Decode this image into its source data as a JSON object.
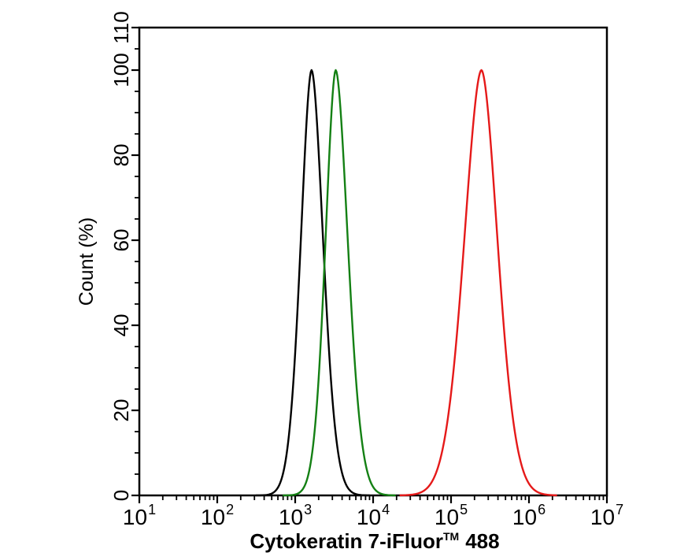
{
  "page": {
    "background": "#ffffff"
  },
  "chart_data": {
    "type": "line",
    "subtype": "flow-cytometry-overlay-histogram",
    "title": "",
    "xlabel": "Cytokeratin 7-iFluor™ 488",
    "xlabel_parts": {
      "prefix": "Cytokeratin 7-iFluor",
      "tm": "TM",
      "suffix": "488"
    },
    "ylabel": "Count (%)",
    "x_scale": "log10",
    "x_log_range": [
      1,
      7
    ],
    "x_tick_mantissa_label": "10",
    "x_major_tick_exponents": [
      1,
      2,
      3,
      4,
      5,
      6,
      7
    ],
    "x_minor_tick_mantissas": [
      2,
      3,
      4,
      5,
      6,
      7,
      8,
      9
    ],
    "ylim": [
      0,
      110
    ],
    "y_major_ticks": [
      0,
      20,
      40,
      60,
      80,
      100,
      110
    ],
    "y_minor_tick_step": 5,
    "grid": false,
    "legend": null,
    "axis_color": "#000000",
    "series": [
      {
        "name": "black-peak",
        "color": "#000000",
        "peak_x": 1620,
        "peak_log10_x": 3.21,
        "peak_y_pct": 100,
        "width_log10_left": 0.2,
        "width_log10_right": 0.215,
        "shape_exponent": 1.8,
        "draw_range_log10": [
          2.5,
          3.95
        ],
        "points": [
          [
            400,
            0
          ],
          [
            500,
            0.5
          ],
          [
            630,
            2.6
          ],
          [
            790,
            11.1
          ],
          [
            1000,
            33.6
          ],
          [
            1260,
            71.1
          ],
          [
            1620,
            100
          ],
          [
            2000,
            81.2
          ],
          [
            2510,
            44.9
          ],
          [
            3160,
            18.0
          ],
          [
            3980,
            5.4
          ],
          [
            5010,
            1.2
          ],
          [
            6310,
            0.2
          ],
          [
            7940,
            0
          ]
        ]
      },
      {
        "name": "green-peak",
        "color": "#148014",
        "peak_x": 3310,
        "peak_log10_x": 3.52,
        "peak_y_pct": 100,
        "width_log10_left": 0.19,
        "width_log10_right": 0.225,
        "shape_exponent": 1.8,
        "draw_range_log10": [
          2.85,
          4.28
        ],
        "points": [
          [
            1000,
            0.2
          ],
          [
            1260,
            1.5
          ],
          [
            1590,
            7.8
          ],
          [
            2000,
            27.2
          ],
          [
            2510,
            64.6
          ],
          [
            3310,
            100
          ],
          [
            3980,
            85.6
          ],
          [
            5010,
            51.2
          ],
          [
            6310,
            22.7
          ],
          [
            7940,
            7.7
          ],
          [
            10000,
            2.0
          ],
          [
            12600,
            0.4
          ],
          [
            15900,
            0
          ]
        ]
      },
      {
        "name": "red-peak",
        "color": "#e51919",
        "peak_x": 245000,
        "peak_log10_x": 5.39,
        "peak_y_pct": 100,
        "width_log10_left": 0.32,
        "width_log10_right": 0.3,
        "shape_exponent": 1.8,
        "draw_range_log10": [
          4.35,
          6.35
        ],
        "points": [
          [
            31600,
            0.2
          ],
          [
            39800,
            0.6
          ],
          [
            50100,
            1.9
          ],
          [
            63100,
            4.9
          ],
          [
            79400,
            11.6
          ],
          [
            100000,
            24.0
          ],
          [
            126000,
            43.3
          ],
          [
            159000,
            67.6
          ],
          [
            200000,
            90.3
          ],
          [
            245000,
            100
          ],
          [
            316000,
            84.8
          ],
          [
            398000,
            59.1
          ],
          [
            501000,
            34.6
          ],
          [
            631000,
            17.3
          ],
          [
            794000,
            7.4
          ],
          [
            1000000,
            2.8
          ],
          [
            1260000,
            0.9
          ],
          [
            1590000,
            0.25
          ],
          [
            2000000,
            0.1
          ]
        ]
      }
    ]
  }
}
